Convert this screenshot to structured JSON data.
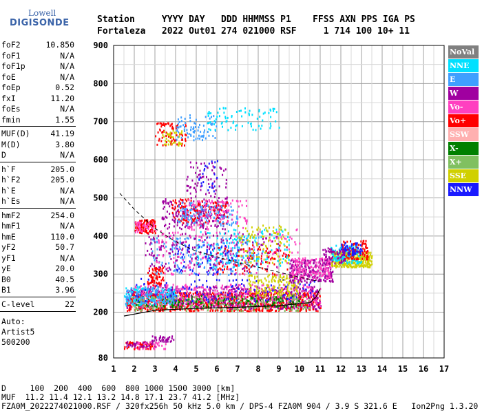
{
  "logo": {
    "line1": "Lowell",
    "line2": "DIGISONDE"
  },
  "header": {
    "labels": [
      "Station",
      "YYYY",
      "DAY",
      "DDD",
      "HHMMSS",
      "P1",
      "FFS",
      "S",
      "AXN",
      "PPS",
      "IGA",
      "PS"
    ],
    "values": [
      "Fortaleza",
      "2022",
      "Out01",
      "274",
      "021000",
      "RSF",
      "",
      "1",
      "714",
      "100",
      "10+",
      "11"
    ]
  },
  "params": [
    {
      "name": "foF2",
      "value": "10.850"
    },
    {
      "name": "foF1",
      "value": "N/A"
    },
    {
      "name": "foF1p",
      "value": "N/A"
    },
    {
      "name": "foE",
      "value": "N/A"
    },
    {
      "name": "foEp",
      "value": "0.52"
    },
    {
      "name": "fxI",
      "value": "11.20"
    },
    {
      "name": "foEs",
      "value": "N/A"
    },
    {
      "name": "fmin",
      "value": "1.55"
    },
    {
      "name": "MUF(D)",
      "value": "41.19"
    },
    {
      "name": "M(D)",
      "value": "3.80"
    },
    {
      "name": "D",
      "value": "N/A"
    },
    {
      "name": "h`F",
      "value": "205.0"
    },
    {
      "name": "h`F2",
      "value": "205.0"
    },
    {
      "name": "h`E",
      "value": "N/A"
    },
    {
      "name": "h`Es",
      "value": "N/A"
    },
    {
      "name": "hmF2",
      "value": "254.0"
    },
    {
      "name": "hmF1",
      "value": "N/A"
    },
    {
      "name": "hmE",
      "value": "110.0"
    },
    {
      "name": "yF2",
      "value": "50.7"
    },
    {
      "name": "yF1",
      "value": "N/A"
    },
    {
      "name": "yE",
      "value": "20.0"
    },
    {
      "name": "B0",
      "value": "40.5"
    },
    {
      "name": "B1",
      "value": "3.96"
    },
    {
      "name": "C-level",
      "value": "22"
    }
  ],
  "auto": {
    "line1": "Auto:",
    "line2": "Artist5",
    "line3": "500200"
  },
  "footer": {
    "d_line": "D     100  200  400  600  800 1000 1500 3000 [km]",
    "muf_line": "MUF  11.2 11.4 12.1 13.2 14.8 17.1 23.7 41.2 [MHz]",
    "info_line": "FZA0M_2022274021000.RSF / 320fx256h 50 kHz 5.0 km / DPS-4 FZA0M 904 / 3.9 S 321.6 E   Ion2Png 1.3.20"
  },
  "legend": [
    {
      "label": "NoVal",
      "bg": "#808080",
      "fg": "#ffffff"
    },
    {
      "label": "NNE",
      "bg": "#00e0ff",
      "fg": "#ffffff"
    },
    {
      "label": "E",
      "bg": "#3f9fff",
      "fg": "#ffffff"
    },
    {
      "label": "W",
      "bg": "#a000a0",
      "fg": "#ffffff"
    },
    {
      "label": "Vo-",
      "bg": "#ff40c0",
      "fg": "#ffffff"
    },
    {
      "label": "Vo+",
      "bg": "#ff0000",
      "fg": "#ffffff"
    },
    {
      "label": "SSW",
      "bg": "#ffb0b0",
      "fg": "#ffffff"
    },
    {
      "label": "X-",
      "bg": "#008000",
      "fg": "#ffffff"
    },
    {
      "label": "X+",
      "bg": "#80c060",
      "fg": "#ffffff"
    },
    {
      "label": "SSE",
      "bg": "#d0d000",
      "fg": "#ffffff"
    },
    {
      "label": "NNW",
      "bg": "#1a1aff",
      "fg": "#ffffff"
    }
  ],
  "chart_data": {
    "type": "scatter",
    "xlim": [
      1,
      17
    ],
    "ylim": [
      80,
      900
    ],
    "x_ticks": [
      1,
      2,
      3,
      4,
      5,
      6,
      7,
      8,
      9,
      10,
      11,
      12,
      13,
      14,
      15,
      16,
      17
    ],
    "y_ticks": [
      80,
      200,
      300,
      400,
      500,
      600,
      700,
      800,
      900
    ],
    "grid": true,
    "profile": [
      [
        1.5,
        190
      ],
      [
        3,
        205
      ],
      [
        5,
        210
      ],
      [
        7,
        213
      ],
      [
        9,
        217
      ],
      [
        10.5,
        225
      ],
      [
        10.8,
        240
      ],
      [
        11,
        262
      ]
    ],
    "muf_curve": [
      [
        1.3,
        512
      ],
      [
        2,
        470
      ],
      [
        3,
        420
      ],
      [
        4,
        385
      ],
      [
        5,
        360
      ],
      [
        6,
        345
      ],
      [
        7,
        330
      ],
      [
        8,
        318
      ],
      [
        9,
        305
      ],
      [
        10,
        292
      ],
      [
        11,
        280
      ]
    ],
    "clusters": [
      {
        "series": "Vo+",
        "xr": [
          1.6,
          11.0
        ],
        "yr": [
          205,
          255
        ],
        "n": 900
      },
      {
        "series": "W",
        "xr": [
          1.6,
          11.0
        ],
        "yr": [
          210,
          270
        ],
        "n": 500
      },
      {
        "series": "Vo-",
        "xr": [
          1.8,
          11.0
        ],
        "yr": [
          215,
          275
        ],
        "n": 350
      },
      {
        "series": "X+",
        "xr": [
          1.8,
          10.5
        ],
        "yr": [
          205,
          245
        ],
        "n": 250
      },
      {
        "series": "X-",
        "xr": [
          2.0,
          10.0
        ],
        "yr": [
          215,
          245
        ],
        "n": 150
      },
      {
        "series": "NNE",
        "xr": [
          1.5,
          4.0
        ],
        "yr": [
          220,
          270
        ],
        "n": 120
      },
      {
        "series": "E",
        "xr": [
          1.5,
          4.0
        ],
        "yr": [
          225,
          265
        ],
        "n": 100
      },
      {
        "series": "NNW",
        "xr": [
          2.0,
          10.8
        ],
        "yr": [
          230,
          290
        ],
        "n": 120
      },
      {
        "series": "SSE",
        "xr": [
          7.5,
          10.0
        ],
        "yr": [
          245,
          300
        ],
        "n": 140
      },
      {
        "series": "W",
        "xr": [
          9.5,
          11.6
        ],
        "yr": [
          280,
          340
        ],
        "n": 250
      },
      {
        "series": "Vo-",
        "xr": [
          9.6,
          11.5
        ],
        "yr": [
          290,
          345
        ],
        "n": 150
      },
      {
        "series": "SSE",
        "xr": [
          11.5,
          13.5
        ],
        "yr": [
          320,
          360
        ],
        "n": 320
      },
      {
        "series": "NNE",
        "xr": [
          11.5,
          13.0
        ],
        "yr": [
          330,
          380
        ],
        "n": 120
      },
      {
        "series": "Vo+",
        "xr": [
          12.0,
          13.3
        ],
        "yr": [
          340,
          390
        ],
        "n": 90
      },
      {
        "series": "NNW",
        "xr": [
          12.0,
          13.0
        ],
        "yr": [
          350,
          385
        ],
        "n": 60
      },
      {
        "series": "W",
        "xr": [
          11.0,
          12.2
        ],
        "yr": [
          330,
          370
        ],
        "n": 60
      },
      {
        "series": "E",
        "xr": [
          2.8,
          8.0
        ],
        "yr": [
          300,
          400
        ],
        "n": 220
      },
      {
        "series": "W",
        "xr": [
          2.5,
          9.0
        ],
        "yr": [
          310,
          410
        ],
        "n": 200
      },
      {
        "series": "Vo-",
        "xr": [
          3.0,
          10.0
        ],
        "yr": [
          300,
          420
        ],
        "n": 160
      },
      {
        "series": "NNE",
        "xr": [
          5.0,
          9.5
        ],
        "yr": [
          320,
          420
        ],
        "n": 130
      },
      {
        "series": "SSE",
        "xr": [
          7.0,
          9.5
        ],
        "yr": [
          330,
          430
        ],
        "n": 100
      },
      {
        "series": "Vo+",
        "xr": [
          6.0,
          9.5
        ],
        "yr": [
          300,
          380
        ],
        "n": 80
      },
      {
        "series": "NNW",
        "xr": [
          4.0,
          7.0
        ],
        "yr": [
          300,
          380
        ],
        "n": 60
      },
      {
        "series": "W",
        "xr": [
          3.3,
          6.5
        ],
        "yr": [
          420,
          500
        ],
        "n": 200
      },
      {
        "series": "Vo+",
        "xr": [
          3.8,
          6.5
        ],
        "yr": [
          430,
          500
        ],
        "n": 120
      },
      {
        "series": "E",
        "xr": [
          4.0,
          7.0
        ],
        "yr": [
          430,
          490
        ],
        "n": 120
      },
      {
        "series": "Vo-",
        "xr": [
          4.5,
          7.5
        ],
        "yr": [
          420,
          500
        ],
        "n": 100
      },
      {
        "series": "Vo+",
        "xr": [
          2.0,
          3.0
        ],
        "yr": [
          410,
          445
        ],
        "n": 100
      },
      {
        "series": "Vo-",
        "xr": [
          2.0,
          3.0
        ],
        "yr": [
          410,
          440
        ],
        "n": 40
      },
      {
        "series": "W",
        "xr": [
          4.5,
          6.5
        ],
        "yr": [
          500,
          600
        ],
        "n": 70
      },
      {
        "series": "NNW",
        "xr": [
          5.0,
          6.0
        ],
        "yr": [
          520,
          600
        ],
        "n": 25
      },
      {
        "series": "Vo+",
        "xr": [
          3.0,
          4.5
        ],
        "yr": [
          640,
          700
        ],
        "n": 80
      },
      {
        "series": "SSE",
        "xr": [
          3.3,
          4.3
        ],
        "yr": [
          640,
          680
        ],
        "n": 40
      },
      {
        "series": "E",
        "xr": [
          4.0,
          6.0
        ],
        "yr": [
          650,
          720
        ],
        "n": 80
      },
      {
        "series": "NNE",
        "xr": [
          5.5,
          9.0
        ],
        "yr": [
          680,
          740
        ],
        "n": 80
      },
      {
        "series": "Vo+",
        "xr": [
          1.5,
          3.0
        ],
        "yr": [
          105,
          125
        ],
        "n": 60
      },
      {
        "series": "W",
        "xr": [
          1.6,
          3.0
        ],
        "yr": [
          110,
          125
        ],
        "n": 40
      },
      {
        "series": "Vo-",
        "xr": [
          2.0,
          3.5
        ],
        "yr": [
          105,
          125
        ],
        "n": 30
      },
      {
        "series": "W",
        "xr": [
          2.8,
          3.9
        ],
        "yr": [
          125,
          140
        ],
        "n": 35
      },
      {
        "series": "Vo+",
        "xr": [
          2.6,
          3.4
        ],
        "yr": [
          270,
          320
        ],
        "n": 70
      }
    ]
  }
}
